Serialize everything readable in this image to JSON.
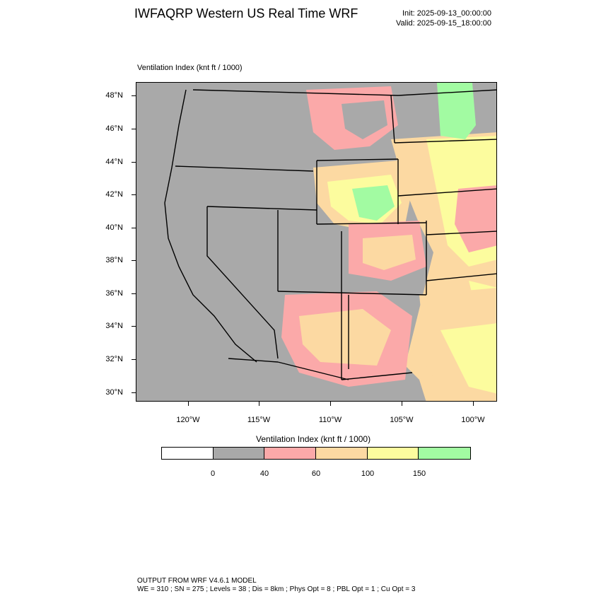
{
  "header": {
    "title": "IWFAQRP Western US Real Time WRF",
    "init": "Init: 2025-09-13_00:00:00",
    "valid": "Valid: 2025-09-15_18:00:00",
    "field_label": "Ventilation Index   (knt ft / 1000)"
  },
  "map": {
    "lat_labels": [
      "48°N",
      "46°N",
      "44°N",
      "42°N",
      "40°N",
      "38°N",
      "36°N",
      "34°N",
      "32°N",
      "30°N"
    ],
    "lon_labels": [
      "120°W",
      "115°W",
      "110°W",
      "105°W",
      "100°W"
    ],
    "region": "Western United States",
    "background_color": "#a9a9a9"
  },
  "colorbar": {
    "title": "Ventilation Index  (knt ft / 1000)",
    "colors": [
      "#ffffff",
      "#a9a9a9",
      "#fba9a9",
      "#fcd9a2",
      "#fcfc9e",
      "#a2fba2"
    ],
    "tick_labels": [
      "0",
      "40",
      "60",
      "100",
      "150"
    ]
  },
  "footer": {
    "line1": "OUTPUT FROM WRF V4.6.1 MODEL",
    "line2": "WE = 310 ; SN = 275 ; Levels = 38 ; Dis = 8km ; Phys Opt = 8 ; PBL Opt = 1 ; Cu Opt = 3"
  }
}
